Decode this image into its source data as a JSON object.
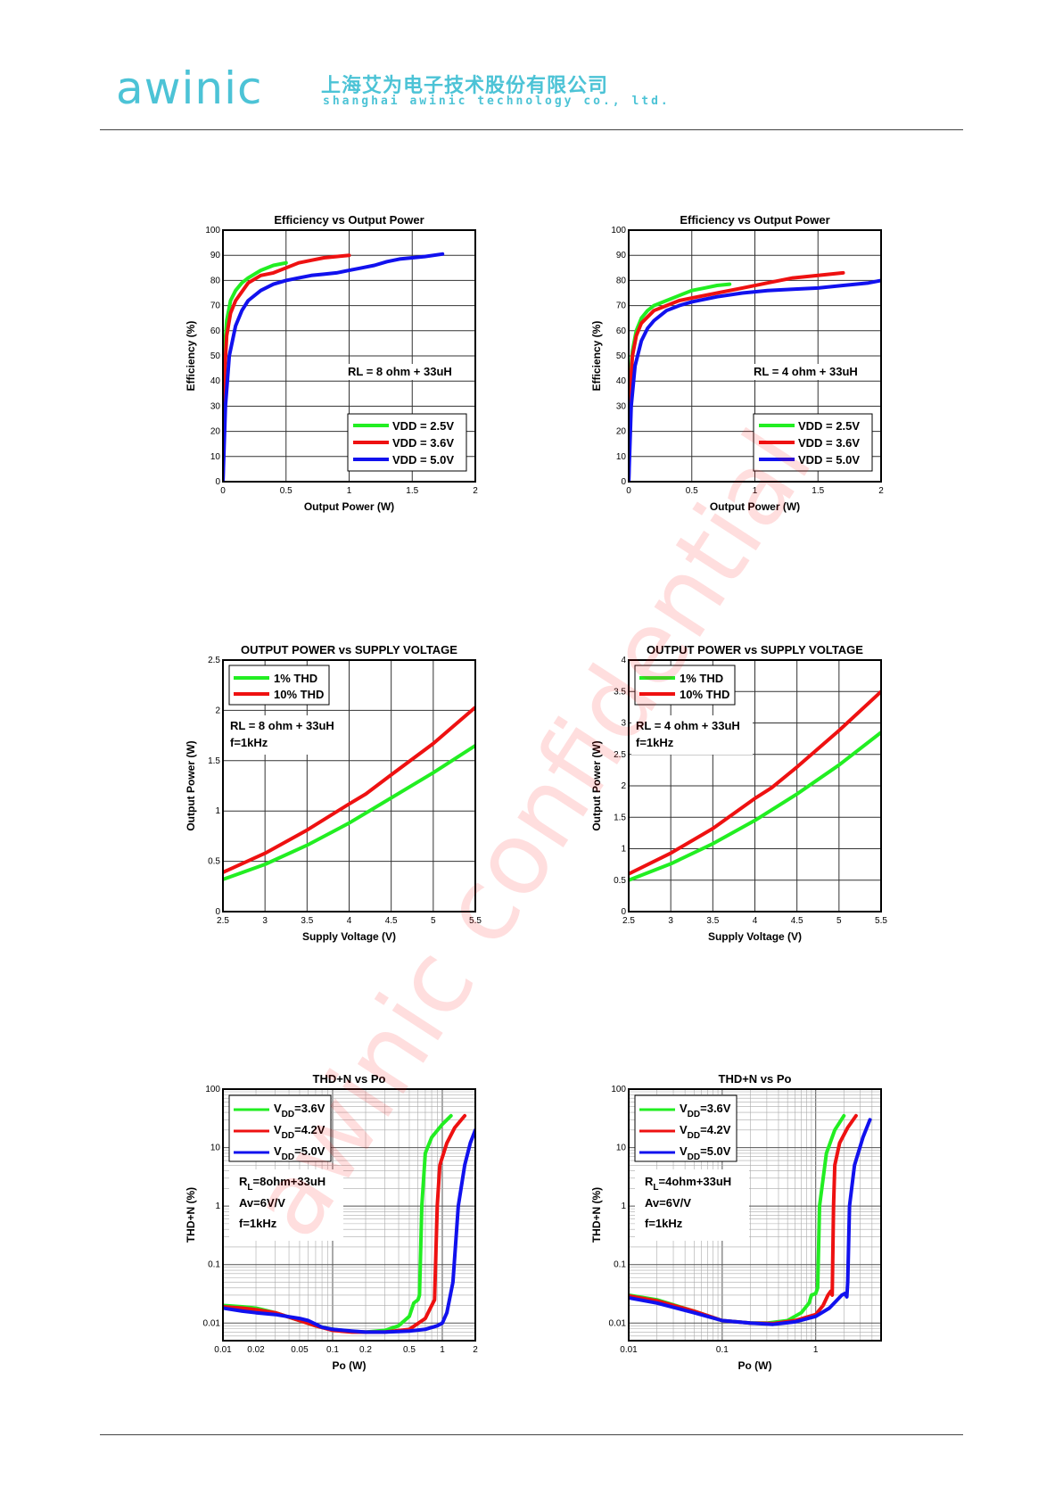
{
  "header": {
    "logo_text": "awinic",
    "company_cn": "上海艾为电子技术股份有限公司",
    "company_en": "shanghai awinic technology co., ltd."
  },
  "watermark": "awinic confidential",
  "colors": {
    "green": "#22ee22",
    "red": "#ee1111",
    "blue": "#1111ee",
    "brand": "#4cc3d6",
    "watermark": "#ff0000"
  },
  "chart_data": [
    {
      "id": "eff8",
      "type": "line",
      "title": "Efficiency vs Output Power",
      "xlabel": "Output Power (W)",
      "ylabel": "Efficiency (%)",
      "xscale": "linear",
      "yscale": "linear",
      "xlim": [
        0,
        2
      ],
      "ylim": [
        0,
        100
      ],
      "xticks": [
        0,
        0.5,
        1,
        1.5,
        2
      ],
      "xtick_labels": [
        "0",
        "0.5",
        "1",
        "1.5",
        "2"
      ],
      "yticks": [
        0,
        10,
        20,
        30,
        40,
        50,
        60,
        70,
        80,
        90,
        100
      ],
      "ytick_labels": [
        "0",
        "10",
        "20",
        "30",
        "40",
        "50",
        "60",
        "70",
        "80",
        "90",
        "100"
      ],
      "grid": true,
      "legend": "bottom-right",
      "annotation": [
        "RL = 8 ohm + 33uH"
      ],
      "series": [
        {
          "name": "VDD = 2.5V",
          "color": "green",
          "x": [
            0,
            0.01,
            0.03,
            0.06,
            0.1,
            0.15,
            0.2,
            0.3,
            0.4,
            0.5
          ],
          "y": [
            0,
            50,
            64,
            72,
            76,
            79,
            81,
            84,
            86,
            87
          ]
        },
        {
          "name": "VDD = 3.6V",
          "color": "red",
          "x": [
            0,
            0.01,
            0.03,
            0.06,
            0.1,
            0.2,
            0.3,
            0.4,
            0.5,
            0.6,
            0.7,
            0.8,
            0.9,
            1.0
          ],
          "y": [
            0,
            40,
            58,
            67,
            72,
            79,
            82,
            83,
            85,
            87,
            88,
            89,
            89.5,
            90
          ]
        },
        {
          "name": "VDD = 5.0V",
          "color": "blue",
          "x": [
            0,
            0.02,
            0.05,
            0.1,
            0.15,
            0.2,
            0.3,
            0.4,
            0.5,
            0.6,
            0.7,
            0.8,
            0.9,
            1.0,
            1.1,
            1.2,
            1.3,
            1.4,
            1.5,
            1.6,
            1.74
          ],
          "y": [
            0,
            30,
            50,
            62,
            68,
            72,
            76,
            78.5,
            80,
            81,
            82,
            82.5,
            83,
            84,
            85,
            86,
            87.5,
            88.5,
            89,
            89.5,
            90.5
          ]
        }
      ]
    },
    {
      "id": "eff4",
      "type": "line",
      "title": "Efficiency vs Output Power",
      "xlabel": "Output Power (W)",
      "ylabel": "Efficiency (%)",
      "xscale": "linear",
      "yscale": "linear",
      "xlim": [
        0,
        2
      ],
      "ylim": [
        0,
        100
      ],
      "xticks": [
        0,
        0.5,
        1,
        1.5,
        2
      ],
      "xtick_labels": [
        "0",
        "0.5",
        "1",
        "1.5",
        "2"
      ],
      "yticks": [
        0,
        10,
        20,
        30,
        40,
        50,
        60,
        70,
        80,
        90,
        100
      ],
      "ytick_labels": [
        "0",
        "10",
        "20",
        "30",
        "40",
        "50",
        "60",
        "70",
        "80",
        "90",
        "100"
      ],
      "grid": true,
      "legend": "bottom-right",
      "annotation": [
        "RL = 4 ohm + 33uH"
      ],
      "series": [
        {
          "name": "VDD = 2.5V",
          "color": "green",
          "x": [
            0,
            0.01,
            0.03,
            0.06,
            0.1,
            0.15,
            0.2,
            0.3,
            0.4,
            0.5,
            0.6,
            0.7,
            0.8
          ],
          "y": [
            0,
            40,
            52,
            60,
            65,
            68,
            70,
            72,
            74,
            76,
            77,
            78,
            78.5
          ]
        },
        {
          "name": "VDD = 3.6V",
          "color": "red",
          "x": [
            0,
            0.01,
            0.03,
            0.06,
            0.1,
            0.2,
            0.3,
            0.4,
            0.5,
            0.7,
            0.9,
            1.1,
            1.3,
            1.5,
            1.7
          ],
          "y": [
            0,
            35,
            50,
            58,
            63,
            68,
            70,
            72,
            73,
            75,
            77,
            79,
            81,
            82,
            83
          ]
        },
        {
          "name": "VDD = 5.0V",
          "color": "blue",
          "x": [
            0,
            0.02,
            0.05,
            0.1,
            0.15,
            0.2,
            0.3,
            0.4,
            0.5,
            0.7,
            0.9,
            1.1,
            1.3,
            1.5,
            1.7,
            1.9,
            2.0
          ],
          "y": [
            0,
            30,
            46,
            56,
            61,
            64,
            68,
            70,
            71.5,
            73.5,
            75,
            76,
            76.5,
            77,
            78,
            79,
            80
          ]
        }
      ]
    },
    {
      "id": "pv8",
      "type": "line",
      "title": "OUTPUT POWER vs SUPPLY VOLTAGE",
      "xlabel": "Supply Voltage (V)",
      "ylabel": "Output Power (W)",
      "xscale": "linear",
      "yscale": "linear",
      "xlim": [
        2.5,
        5.5
      ],
      "ylim": [
        0,
        2.5
      ],
      "xticks": [
        2.5,
        3,
        3.5,
        4,
        4.5,
        5,
        5.5
      ],
      "xtick_labels": [
        "2.5",
        "3",
        "3.5",
        "4",
        "4.5",
        "5",
        "5.5"
      ],
      "yticks": [
        0,
        0.5,
        1,
        1.5,
        2,
        2.5
      ],
      "ytick_labels": [
        "0",
        "0.5",
        "1",
        "1.5",
        "2",
        "2.5"
      ],
      "grid": true,
      "legend": "top-left",
      "annotation": [
        "RL = 8 ohm + 33uH",
        "f=1kHz"
      ],
      "series": [
        {
          "name": "1% THD",
          "color": "green",
          "x": [
            2.5,
            3.0,
            3.5,
            4.0,
            4.5,
            5.0,
            5.5
          ],
          "y": [
            0.32,
            0.47,
            0.66,
            0.88,
            1.13,
            1.38,
            1.65
          ]
        },
        {
          "name": "10% THD",
          "color": "red",
          "x": [
            2.5,
            3.0,
            3.5,
            4.0,
            4.2,
            4.5,
            5.0,
            5.5
          ],
          "y": [
            0.39,
            0.58,
            0.81,
            1.07,
            1.17,
            1.36,
            1.67,
            2.03
          ]
        }
      ]
    },
    {
      "id": "pv4",
      "type": "line",
      "title": "OUTPUT POWER vs SUPPLY VOLTAGE",
      "xlabel": "Supply Voltage (V)",
      "ylabel": "Output Power (W)",
      "xscale": "linear",
      "yscale": "linear",
      "xlim": [
        2.5,
        5.5
      ],
      "ylim": [
        0,
        4
      ],
      "xticks": [
        2.5,
        3,
        3.5,
        4,
        4.5,
        5,
        5.5
      ],
      "xtick_labels": [
        "2.5",
        "3",
        "3.5",
        "4",
        "4.5",
        "5",
        "5.5"
      ],
      "yticks": [
        0,
        0.5,
        1,
        1.5,
        2,
        2.5,
        3,
        3.5,
        4
      ],
      "ytick_labels": [
        "0",
        "0.5",
        "1",
        "1.5",
        "2",
        "2.5",
        "3",
        "3.5",
        "4"
      ],
      "grid": true,
      "legend": "top-left",
      "annotation": [
        "RL = 4 ohm + 33uH",
        "f=1kHz"
      ],
      "series": [
        {
          "name": "1% THD",
          "color": "green",
          "x": [
            2.5,
            3.0,
            3.5,
            4.0,
            4.5,
            5.0,
            5.5
          ],
          "y": [
            0.5,
            0.76,
            1.08,
            1.45,
            1.87,
            2.33,
            2.85
          ]
        },
        {
          "name": "10% THD",
          "color": "red",
          "x": [
            2.5,
            3.0,
            3.5,
            4.0,
            4.2,
            4.5,
            5.0,
            5.5
          ],
          "y": [
            0.6,
            0.93,
            1.32,
            1.8,
            1.97,
            2.3,
            2.88,
            3.5
          ]
        }
      ]
    },
    {
      "id": "thd8",
      "type": "line",
      "title": "THD+N vs Po",
      "xlabel": "Po (W)",
      "ylabel": "THD+N (%)",
      "xscale": "log",
      "yscale": "log",
      "xlim": [
        0.01,
        2
      ],
      "ylim": [
        0.005,
        100
      ],
      "xticks": [
        0.01,
        0.02,
        0.05,
        0.1,
        0.2,
        0.5,
        1,
        2
      ],
      "xtick_labels": [
        "0.01",
        "0.02",
        "0.05",
        "0.1",
        "0.2",
        "0.5",
        "1",
        "2"
      ],
      "yticks": [
        0.01,
        0.1,
        1,
        10,
        100
      ],
      "ytick_labels": [
        "0.01",
        "0.1",
        "1",
        "10",
        "100"
      ],
      "grid": true,
      "legend": "top-left",
      "legend_entries": [
        {
          "main": "V",
          "sub": "DD",
          "rest": "=3.6V"
        },
        {
          "main": "V",
          "sub": "DD",
          "rest": "=4.2V"
        },
        {
          "main": "V",
          "sub": "DD",
          "rest": "=5.0V"
        }
      ],
      "annotation_rich": {
        "main": "R",
        "sub": "L",
        "rest": "=8ohm+33uH"
      },
      "annotation": [
        "Av=6V/V",
        "f=1kHz"
      ],
      "series": [
        {
          "name": "VDD=3.6V",
          "color": "green",
          "x": [
            0.01,
            0.015,
            0.02,
            0.03,
            0.05,
            0.07,
            0.1,
            0.15,
            0.2,
            0.3,
            0.4,
            0.5,
            0.55,
            0.6,
            0.62,
            0.65,
            0.7,
            0.8,
            1.0,
            1.2
          ],
          "y": [
            0.02,
            0.019,
            0.018,
            0.015,
            0.011,
            0.009,
            0.0078,
            0.0072,
            0.007,
            0.0075,
            0.009,
            0.013,
            0.022,
            0.025,
            0.03,
            1.0,
            8.0,
            15.0,
            25.0,
            35.0
          ]
        },
        {
          "name": "VDD=4.2V",
          "color": "red",
          "x": [
            0.01,
            0.015,
            0.02,
            0.03,
            0.05,
            0.07,
            0.1,
            0.15,
            0.2,
            0.3,
            0.5,
            0.7,
            0.8,
            0.85,
            0.9,
            0.95,
            1.1,
            1.3,
            1.6
          ],
          "y": [
            0.019,
            0.018,
            0.017,
            0.015,
            0.011,
            0.009,
            0.0075,
            0.007,
            0.007,
            0.007,
            0.0078,
            0.012,
            0.02,
            0.025,
            1.0,
            5.0,
            12.0,
            22.0,
            35.0
          ]
        },
        {
          "name": "VDD=5.0V",
          "color": "blue",
          "x": [
            0.01,
            0.015,
            0.02,
            0.03,
            0.05,
            0.06,
            0.08,
            0.1,
            0.15,
            0.2,
            0.3,
            0.5,
            0.7,
            0.9,
            1.0,
            1.1,
            1.25,
            1.4,
            1.6,
            1.8,
            2.0
          ],
          "y": [
            0.018,
            0.016,
            0.015,
            0.014,
            0.012,
            0.011,
            0.0085,
            0.0078,
            0.0073,
            0.007,
            0.007,
            0.0073,
            0.0078,
            0.009,
            0.01,
            0.015,
            0.05,
            1.0,
            5.0,
            12.0,
            20.0
          ]
        }
      ]
    },
    {
      "id": "thd4",
      "type": "line",
      "title": "THD+N vs Po",
      "xlabel": "Po (W)",
      "ylabel": "THD+N (%)",
      "xscale": "log",
      "yscale": "log",
      "xlim": [
        0.01,
        5
      ],
      "ylim": [
        0.005,
        100
      ],
      "xticks": [
        0.01,
        0.1,
        1
      ],
      "xtick_labels": [
        "0.01",
        "0.1",
        "1"
      ],
      "yticks": [
        0.01,
        0.1,
        1,
        10,
        100
      ],
      "ytick_labels": [
        "0.01",
        "0.1",
        "1",
        "10",
        "100"
      ],
      "grid": true,
      "legend": "top-left",
      "legend_entries": [
        {
          "main": "V",
          "sub": "DD",
          "rest": "=3.6V"
        },
        {
          "main": "V",
          "sub": "DD",
          "rest": "=4.2V"
        },
        {
          "main": "V",
          "sub": "DD",
          "rest": "=5.0V"
        }
      ],
      "annotation_rich": {
        "main": "R",
        "sub": "L",
        "rest": "=4ohm+33uH"
      },
      "annotation": [
        "Av=6V/V",
        "f=1kHz"
      ],
      "series": [
        {
          "name": "VDD=3.6V",
          "color": "green",
          "x": [
            0.01,
            0.02,
            0.05,
            0.1,
            0.2,
            0.3,
            0.5,
            0.7,
            0.85,
            0.9,
            1.0,
            1.05,
            1.1,
            1.3,
            1.6,
            2.0
          ],
          "y": [
            0.03,
            0.025,
            0.016,
            0.011,
            0.01,
            0.01,
            0.011,
            0.015,
            0.022,
            0.03,
            0.032,
            0.04,
            1.0,
            8.0,
            20.0,
            35.0
          ]
        },
        {
          "name": "VDD=4.2V",
          "color": "red",
          "x": [
            0.01,
            0.02,
            0.05,
            0.1,
            0.2,
            0.35,
            0.6,
            1.0,
            1.2,
            1.35,
            1.45,
            1.5,
            1.55,
            1.6,
            1.8,
            2.2,
            2.7
          ],
          "y": [
            0.029,
            0.024,
            0.016,
            0.011,
            0.01,
            0.0098,
            0.011,
            0.014,
            0.02,
            0.03,
            0.035,
            0.03,
            1.0,
            5.0,
            12.0,
            22.0,
            35.0
          ]
        },
        {
          "name": "VDD=5.0V",
          "color": "blue",
          "x": [
            0.01,
            0.02,
            0.05,
            0.1,
            0.2,
            0.35,
            0.6,
            1.0,
            1.4,
            1.7,
            1.9,
            2.05,
            2.15,
            2.2,
            2.3,
            2.6,
            3.2,
            3.8
          ],
          "y": [
            0.027,
            0.022,
            0.015,
            0.011,
            0.01,
            0.0095,
            0.0105,
            0.013,
            0.018,
            0.025,
            0.03,
            0.032,
            0.028,
            0.05,
            1.0,
            5.0,
            15.0,
            30.0
          ]
        }
      ]
    }
  ]
}
